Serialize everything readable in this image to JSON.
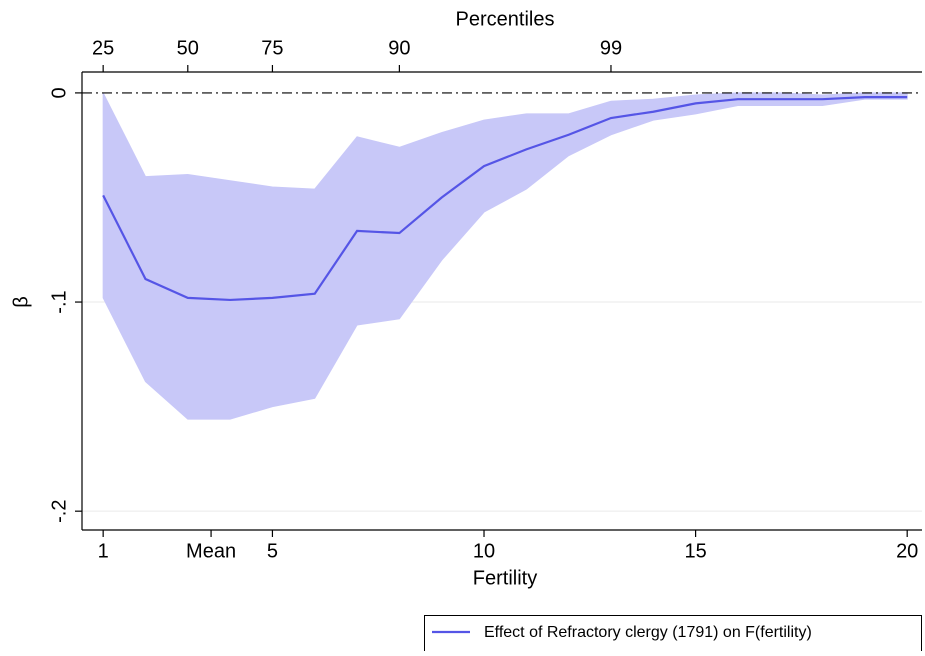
{
  "chart_data": {
    "type": "line",
    "x_label": "Fertility",
    "y_label": "β",
    "x2_label": "Percentiles",
    "x": [
      1,
      2,
      3,
      4,
      5,
      6,
      7,
      8,
      9,
      10,
      11,
      12,
      13,
      14,
      15,
      16,
      17,
      18,
      19,
      20
    ],
    "series": [
      {
        "name": "Effect of Refractory clergy (1791) on F(fertility)",
        "color": "#5555e6",
        "band_color": "#c8c8f8",
        "values": [
          -0.049,
          -0.089,
          -0.098,
          -0.099,
          -0.098,
          -0.096,
          -0.066,
          -0.067,
          -0.05,
          -0.035,
          -0.027,
          -0.02,
          -0.012,
          -0.009,
          -0.005,
          -0.003,
          -0.003,
          -0.003,
          -0.002,
          -0.002
        ],
        "upper": [
          0.0,
          -0.04,
          -0.039,
          -0.042,
          -0.045,
          -0.046,
          -0.021,
          -0.026,
          -0.019,
          -0.013,
          -0.01,
          -0.01,
          -0.004,
          -0.003,
          -0.001,
          0.0,
          0.0,
          -0.001,
          0.0,
          0.0
        ],
        "lower": [
          -0.098,
          -0.138,
          -0.156,
          -0.156,
          -0.15,
          -0.146,
          -0.111,
          -0.108,
          -0.08,
          -0.057,
          -0.046,
          -0.03,
          -0.02,
          -0.013,
          -0.01,
          -0.006,
          -0.006,
          -0.006,
          -0.003,
          -0.003
        ]
      }
    ],
    "xlim": [
      0.5,
      20.35
    ],
    "ylim": [
      -0.209,
      0.01
    ],
    "xticks": [
      1,
      {
        "value": 3.55,
        "label": "Mean"
      },
      5,
      10,
      15,
      20
    ],
    "x2ticks": [
      {
        "value": 1,
        "label": "25"
      },
      {
        "value": 3,
        "label": "50"
      },
      {
        "value": 5,
        "label": "75"
      },
      {
        "value": 8,
        "label": "90"
      },
      {
        "value": 13,
        "label": "99"
      }
    ],
    "yticks": [
      {
        "value": 0,
        "label": "0"
      },
      {
        "value": -0.1,
        "label": "-.1"
      },
      {
        "value": -0.2,
        "label": "-.2"
      }
    ],
    "hline": 0,
    "grid": true
  }
}
